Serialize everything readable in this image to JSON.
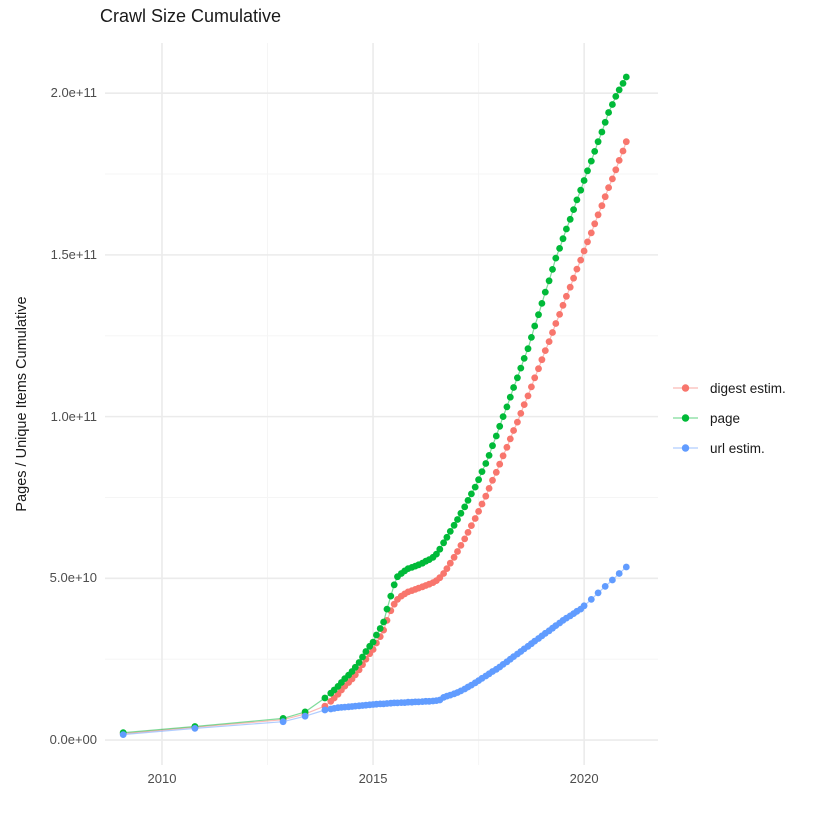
{
  "title": "Crawl Size Cumulative",
  "chart_data": {
    "type": "scatter",
    "title": "Crawl Size Cumulative",
    "xlabel": "",
    "ylabel": "Pages / Unique Items Cumulative",
    "values_unit": "billions of pages (value 205 = 2.05e+11)",
    "grid": true,
    "legend_position": "right",
    "xlim": [
      2008.65,
      2021.75
    ],
    "ylim": [
      -7.7,
      215.5
    ],
    "x_ticks": [
      {
        "v": 2010,
        "label": "2010"
      },
      {
        "v": 2015,
        "label": "2015"
      },
      {
        "v": 2020,
        "label": "2020"
      }
    ],
    "y_ticks": [
      {
        "v": 0,
        "label": "0.0e+00"
      },
      {
        "v": 50,
        "label": "5.0e+10"
      },
      {
        "v": 100,
        "label": "1.0e+11"
      },
      {
        "v": 150,
        "label": "1.5e+11"
      },
      {
        "v": 200,
        "label": "2.0e+11"
      }
    ],
    "minor_x": [
      2012.5,
      2017.5
    ],
    "minor_y": [
      25,
      75,
      125,
      175
    ],
    "colors": {
      "major_grid": "#ebebeb",
      "minor_grid": "#f5f5f5",
      "tick_text": "#4d4d4d",
      "title_text": "#1a1a1a"
    },
    "series": [
      {
        "name": "digest estim.",
        "color": "#F8766D",
        "points": [
          [
            2009.08,
            2.0
          ],
          [
            2010.78,
            4.0
          ],
          [
            2012.87,
            6.3
          ],
          [
            2013.39,
            8.1
          ],
          [
            2013.86,
            10.5
          ],
          [
            2014.0,
            12
          ],
          [
            2014.08,
            13
          ],
          [
            2014.17,
            14.2
          ],
          [
            2014.25,
            15.5
          ],
          [
            2014.33,
            16.7
          ],
          [
            2014.42,
            17.8
          ],
          [
            2014.5,
            18.9
          ],
          [
            2014.58,
            20.2
          ],
          [
            2014.67,
            21.7
          ],
          [
            2014.75,
            23.3
          ],
          [
            2014.83,
            25
          ],
          [
            2014.92,
            26.7
          ],
          [
            2015.0,
            28
          ],
          [
            2015.08,
            30
          ],
          [
            2015.17,
            32
          ],
          [
            2015.25,
            34
          ],
          [
            2015.33,
            37
          ],
          [
            2015.42,
            40
          ],
          [
            2015.5,
            42
          ],
          [
            2015.58,
            43.5
          ],
          [
            2015.67,
            44.5
          ],
          [
            2015.75,
            45.2
          ],
          [
            2015.83,
            45.8
          ],
          [
            2015.92,
            46.2
          ],
          [
            2016.0,
            46.6
          ],
          [
            2016.08,
            47
          ],
          [
            2016.17,
            47.4
          ],
          [
            2016.25,
            47.8
          ],
          [
            2016.33,
            48.2
          ],
          [
            2016.42,
            48.7
          ],
          [
            2016.5,
            49.3
          ],
          [
            2016.58,
            50.2
          ],
          [
            2016.67,
            51.5
          ],
          [
            2016.75,
            53
          ],
          [
            2016.83,
            54.7
          ],
          [
            2016.92,
            56.5
          ],
          [
            2017.0,
            58.3
          ],
          [
            2017.08,
            60.2
          ],
          [
            2017.17,
            62.2
          ],
          [
            2017.25,
            64.2
          ],
          [
            2017.33,
            66.3
          ],
          [
            2017.42,
            68.5
          ],
          [
            2017.5,
            70.7
          ],
          [
            2017.58,
            73
          ],
          [
            2017.67,
            75.4
          ],
          [
            2017.75,
            77.8
          ],
          [
            2017.83,
            80.3
          ],
          [
            2017.92,
            82.8
          ],
          [
            2018.0,
            85.3
          ],
          [
            2018.08,
            87.9
          ],
          [
            2018.17,
            90.5
          ],
          [
            2018.25,
            93.1
          ],
          [
            2018.33,
            95.7
          ],
          [
            2018.42,
            98.3
          ],
          [
            2018.5,
            101
          ],
          [
            2018.58,
            103.7
          ],
          [
            2018.67,
            106.4
          ],
          [
            2018.75,
            109.2
          ],
          [
            2018.83,
            112
          ],
          [
            2018.92,
            114.8
          ],
          [
            2019.0,
            117.6
          ],
          [
            2019.08,
            120.4
          ],
          [
            2019.17,
            123.2
          ],
          [
            2019.25,
            126
          ],
          [
            2019.33,
            128.8
          ],
          [
            2019.42,
            131.6
          ],
          [
            2019.5,
            134.4
          ],
          [
            2019.58,
            137.2
          ],
          [
            2019.67,
            140
          ],
          [
            2019.75,
            142.8
          ],
          [
            2019.83,
            145.6
          ],
          [
            2019.92,
            148.4
          ],
          [
            2020.0,
            151.2
          ],
          [
            2020.08,
            154
          ],
          [
            2020.17,
            156.8
          ],
          [
            2020.25,
            159.6
          ],
          [
            2020.33,
            162.4
          ],
          [
            2020.42,
            165.2
          ],
          [
            2020.5,
            168
          ],
          [
            2020.58,
            170.8
          ],
          [
            2020.67,
            173.5
          ],
          [
            2020.75,
            176.3
          ],
          [
            2020.83,
            179.2
          ],
          [
            2020.92,
            182.1
          ],
          [
            2021.0,
            185
          ]
        ]
      },
      {
        "name": "page",
        "color": "#00BA38",
        "points": [
          [
            2009.08,
            2.3
          ],
          [
            2010.78,
            4.2
          ],
          [
            2012.87,
            6.7
          ],
          [
            2013.39,
            8.7
          ],
          [
            2013.86,
            13
          ],
          [
            2014.0,
            14.5
          ],
          [
            2014.08,
            15.5
          ],
          [
            2014.17,
            16.6
          ],
          [
            2014.25,
            17.8
          ],
          [
            2014.33,
            19
          ],
          [
            2014.42,
            20.1
          ],
          [
            2014.5,
            21.2
          ],
          [
            2014.58,
            22.5
          ],
          [
            2014.67,
            24
          ],
          [
            2014.75,
            25.7
          ],
          [
            2014.83,
            27.4
          ],
          [
            2014.92,
            29
          ],
          [
            2015.0,
            30.3
          ],
          [
            2015.08,
            32.5
          ],
          [
            2015.17,
            34.5
          ],
          [
            2015.25,
            36.5
          ],
          [
            2015.33,
            40.5
          ],
          [
            2015.42,
            44.5
          ],
          [
            2015.5,
            48
          ],
          [
            2015.58,
            50.5
          ],
          [
            2015.67,
            51.5
          ],
          [
            2015.75,
            52.3
          ],
          [
            2015.83,
            53
          ],
          [
            2015.92,
            53.4
          ],
          [
            2016.0,
            53.8
          ],
          [
            2016.08,
            54.2
          ],
          [
            2016.17,
            54.7
          ],
          [
            2016.25,
            55.3
          ],
          [
            2016.33,
            55.8
          ],
          [
            2016.42,
            56.5
          ],
          [
            2016.5,
            57.5
          ],
          [
            2016.58,
            59
          ],
          [
            2016.67,
            61
          ],
          [
            2016.75,
            62.7
          ],
          [
            2016.83,
            64.5
          ],
          [
            2016.92,
            66.4
          ],
          [
            2017.0,
            68.2
          ],
          [
            2017.08,
            70.1
          ],
          [
            2017.17,
            72.1
          ],
          [
            2017.25,
            74.1
          ],
          [
            2017.33,
            76.1
          ],
          [
            2017.42,
            78.2
          ],
          [
            2017.5,
            80.5
          ],
          [
            2017.58,
            83
          ],
          [
            2017.67,
            85.5
          ],
          [
            2017.75,
            88
          ],
          [
            2017.83,
            91
          ],
          [
            2017.92,
            94
          ],
          [
            2018.0,
            97
          ],
          [
            2018.08,
            100
          ],
          [
            2018.17,
            103
          ],
          [
            2018.25,
            106
          ],
          [
            2018.33,
            109
          ],
          [
            2018.42,
            112
          ],
          [
            2018.5,
            115
          ],
          [
            2018.58,
            118
          ],
          [
            2018.67,
            121
          ],
          [
            2018.75,
            124.5
          ],
          [
            2018.83,
            128
          ],
          [
            2018.92,
            131.5
          ],
          [
            2019.0,
            135
          ],
          [
            2019.08,
            138.5
          ],
          [
            2019.17,
            142
          ],
          [
            2019.25,
            145.5
          ],
          [
            2019.33,
            149
          ],
          [
            2019.42,
            152
          ],
          [
            2019.5,
            155
          ],
          [
            2019.58,
            158
          ],
          [
            2019.67,
            161
          ],
          [
            2019.75,
            164
          ],
          [
            2019.83,
            167
          ],
          [
            2019.92,
            170
          ],
          [
            2020.0,
            173
          ],
          [
            2020.08,
            176
          ],
          [
            2020.17,
            179
          ],
          [
            2020.25,
            182
          ],
          [
            2020.33,
            185
          ],
          [
            2020.42,
            188
          ],
          [
            2020.5,
            191
          ],
          [
            2020.58,
            194
          ],
          [
            2020.67,
            196.5
          ],
          [
            2020.75,
            199
          ],
          [
            2020.83,
            201
          ],
          [
            2020.92,
            203
          ],
          [
            2021.0,
            205
          ]
        ]
      },
      {
        "name": "url estim.",
        "color": "#619CFF",
        "points": [
          [
            2009.08,
            1.7
          ],
          [
            2010.78,
            3.6
          ],
          [
            2012.87,
            5.7
          ],
          [
            2013.39,
            7.4
          ],
          [
            2013.86,
            9.3
          ],
          [
            2014.0,
            9.6
          ],
          [
            2014.08,
            9.8
          ],
          [
            2014.17,
            10
          ],
          [
            2014.25,
            10.1
          ],
          [
            2014.33,
            10.2
          ],
          [
            2014.42,
            10.3
          ],
          [
            2014.5,
            10.4
          ],
          [
            2014.58,
            10.5
          ],
          [
            2014.67,
            10.6
          ],
          [
            2014.75,
            10.7
          ],
          [
            2014.83,
            10.8
          ],
          [
            2014.92,
            10.9
          ],
          [
            2015.0,
            11
          ],
          [
            2015.08,
            11.1
          ],
          [
            2015.17,
            11.2
          ],
          [
            2015.25,
            11.2
          ],
          [
            2015.33,
            11.3
          ],
          [
            2015.42,
            11.4
          ],
          [
            2015.5,
            11.5
          ],
          [
            2015.58,
            11.5
          ],
          [
            2015.67,
            11.6
          ],
          [
            2015.75,
            11.6
          ],
          [
            2015.83,
            11.7
          ],
          [
            2015.92,
            11.7
          ],
          [
            2016.0,
            11.8
          ],
          [
            2016.08,
            11.8
          ],
          [
            2016.17,
            11.9
          ],
          [
            2016.25,
            12
          ],
          [
            2016.33,
            12
          ],
          [
            2016.42,
            12.1
          ],
          [
            2016.5,
            12.2
          ],
          [
            2016.58,
            12.4
          ],
          [
            2016.67,
            13.2
          ],
          [
            2016.75,
            13.6
          ],
          [
            2016.83,
            13.9
          ],
          [
            2016.92,
            14.3
          ],
          [
            2017.0,
            14.7
          ],
          [
            2017.08,
            15.2
          ],
          [
            2017.17,
            15.8
          ],
          [
            2017.25,
            16.4
          ],
          [
            2017.33,
            17
          ],
          [
            2017.42,
            17.7
          ],
          [
            2017.5,
            18.4
          ],
          [
            2017.58,
            19.1
          ],
          [
            2017.67,
            19.8
          ],
          [
            2017.75,
            20.5
          ],
          [
            2017.83,
            21.2
          ],
          [
            2017.92,
            21.9
          ],
          [
            2018.0,
            22.6
          ],
          [
            2018.08,
            23.4
          ],
          [
            2018.17,
            24.2
          ],
          [
            2018.25,
            25
          ],
          [
            2018.33,
            25.8
          ],
          [
            2018.42,
            26.6
          ],
          [
            2018.5,
            27.4
          ],
          [
            2018.58,
            28.2
          ],
          [
            2018.67,
            29
          ],
          [
            2018.75,
            29.8
          ],
          [
            2018.83,
            30.6
          ],
          [
            2018.92,
            31.4
          ],
          [
            2019.0,
            32.2
          ],
          [
            2019.08,
            33
          ],
          [
            2019.17,
            33.8
          ],
          [
            2019.25,
            34.6
          ],
          [
            2019.33,
            35.4
          ],
          [
            2019.42,
            36.2
          ],
          [
            2019.5,
            37
          ],
          [
            2019.58,
            37.7
          ],
          [
            2019.67,
            38.4
          ],
          [
            2019.75,
            39.1
          ],
          [
            2019.83,
            39.8
          ],
          [
            2019.92,
            40.5
          ],
          [
            2020.0,
            41.5
          ],
          [
            2020.17,
            43.5
          ],
          [
            2020.33,
            45.5
          ],
          [
            2020.5,
            47.5
          ],
          [
            2020.67,
            49.5
          ],
          [
            2020.83,
            51.5
          ],
          [
            2021.0,
            53.5
          ]
        ]
      }
    ]
  }
}
